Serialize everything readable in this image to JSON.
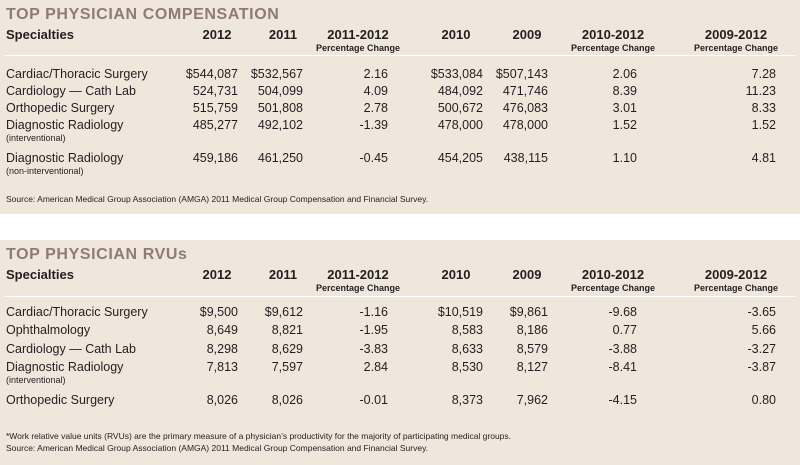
{
  "compensation": {
    "title": "TOP PHYSICIAN COMPENSATION",
    "headers": {
      "specialties": "Specialties",
      "y2012": "2012",
      "y2011": "2011",
      "c1112": "2011-2012",
      "y2010": "2010",
      "y2009": "2009",
      "c1012": "2010-2012",
      "c0912": "2009-2012",
      "pct": "Percentage Change"
    },
    "rows": [
      {
        "name": "Cardiac/Thoracic Surgery",
        "note": "",
        "y2012": "$544,087",
        "y2011": "$532,567",
        "c1112": "2.16",
        "y2010": "$533,084",
        "y2009": "$507,143",
        "c1012": "2.06",
        "c0912": "7.28"
      },
      {
        "name": "Cardiology — Cath Lab",
        "note": "",
        "y2012": "524,731",
        "y2011": "504,099",
        "c1112": "4.09",
        "y2010": "484,092",
        "y2009": "471,746",
        "c1012": "8.39",
        "c0912": "11.23"
      },
      {
        "name": "Orthopedic Surgery",
        "note": "",
        "y2012": "515,759",
        "y2011": "501,808",
        "c1112": "2.78",
        "y2010": "500,672",
        "y2009": "476,083",
        "c1012": "3.01",
        "c0912": "8.33"
      },
      {
        "name": "Diagnostic Radiology",
        "note": "(interventional)",
        "y2012": "485,277",
        "y2011": "492,102",
        "c1112": "-1.39",
        "y2010": "478,000",
        "y2009": "478,000",
        "c1012": "1.52",
        "c0912": "1.52"
      },
      {
        "name": "Diagnostic Radiology",
        "note": "(non-interventional)",
        "y2012": "459,186",
        "y2011": "461,250",
        "c1112": "-0.45",
        "y2010": "454,205",
        "y2009": "438,115",
        "c1012": "1.10",
        "c0912": "4.81"
      }
    ],
    "source": "Source: American Medical Group Association (AMGA) 2011 Medical Group Compensation and Financial Survey."
  },
  "rvu": {
    "title": "TOP PHYSICIAN RVUs",
    "headers": {
      "specialties": "Specialties",
      "y2012": "2012",
      "y2011": "2011",
      "c1112": "2011-2012",
      "y2010": "2010",
      "y2009": "2009",
      "c1012": "2010-2012",
      "c0912": "2009-2012",
      "pct": "Percentage Change"
    },
    "rows": [
      {
        "name": "Cardiac/Thoracic Surgery",
        "note": "",
        "y2012": "$9,500",
        "y2011": "$9,612",
        "c1112": "-1.16",
        "y2010": "$10,519",
        "y2009": "$9,861",
        "c1012": "-9.68",
        "c0912": "-3.65"
      },
      {
        "name": "Ophthalmology",
        "note": "",
        "y2012": "8,649",
        "y2011": "8,821",
        "c1112": "-1.95",
        "y2010": "8,583",
        "y2009": "8,186",
        "c1012": "0.77",
        "c0912": "5.66"
      },
      {
        "name": "Cardiology — Cath Lab",
        "note": "",
        "y2012": "8,298",
        "y2011": "8,629",
        "c1112": "-3.83",
        "y2010": "8,633",
        "y2009": "8,579",
        "c1012": "-3.88",
        "c0912": "-3.27"
      },
      {
        "name": "Diagnostic Radiology",
        "note": "(interventional)",
        "y2012": "7,813",
        "y2011": "7,597",
        "c1112": "2.84",
        "y2010": "8,530",
        "y2009": "8,127",
        "c1012": "-8.41",
        "c0912": "-3.87"
      },
      {
        "name": "Orthopedic Surgery",
        "note": "",
        "y2012": "8,026",
        "y2011": "8,026",
        "c1112": "-0.01",
        "y2010": "8,373",
        "y2009": "7,962",
        "c1012": "-4.15",
        "c0912": "0.80"
      }
    ],
    "footnote": "*Work relative value units (RVUs) are the primary measure of a physician’s productivity for the majority of participating medical groups.",
    "source": "Source: American Medical Group Association (AMGA) 2011 Medical Group Compensation and Financial Survey."
  }
}
